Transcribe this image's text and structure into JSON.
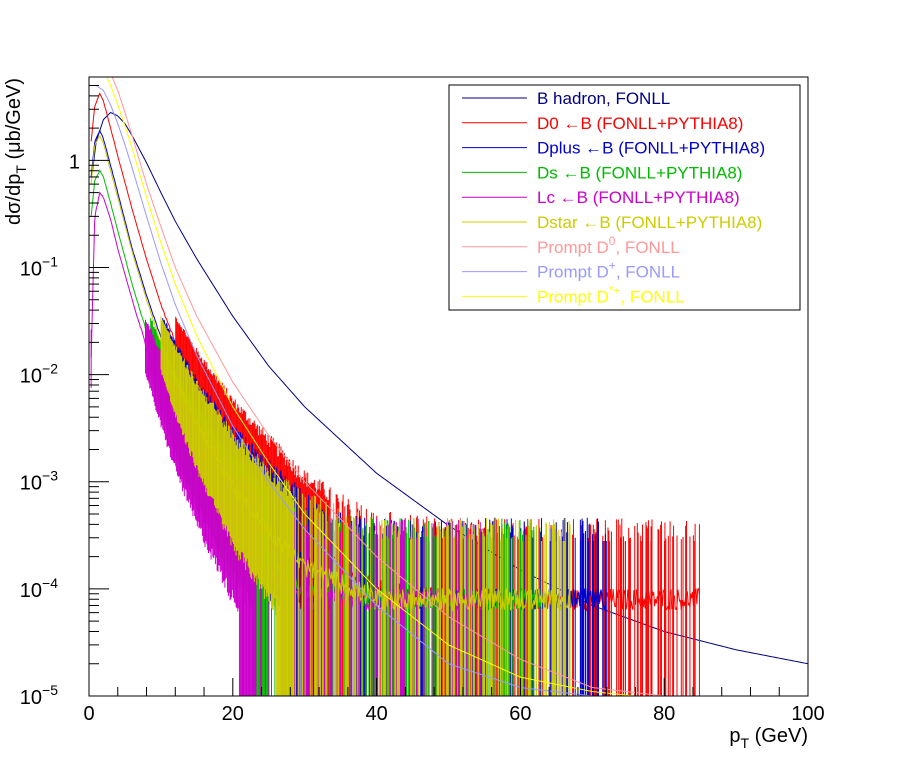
{
  "chart_data": {
    "type": "line",
    "title": "",
    "xlabel_main": "p",
    "xlabel_sub": "T",
    "xlabel_unit": " (GeV)",
    "ylabel_main": "dσ/dp",
    "ylabel_sub": "T",
    "ylabel_unit": " (μb/GeV)",
    "xlim": [
      0,
      100
    ],
    "ylim": [
      1e-05,
      6
    ],
    "yscale": "log",
    "grid": false,
    "legend_position": "top-right",
    "x_ticks": [
      "0",
      "20",
      "40",
      "60",
      "80",
      "100"
    ],
    "y_ticks": [
      {
        "value": 1e-05,
        "base": "10",
        "exp": "−5"
      },
      {
        "value": 0.0001,
        "base": "10",
        "exp": "−4"
      },
      {
        "value": 0.001,
        "base": "10",
        "exp": "−3"
      },
      {
        "value": 0.01,
        "base": "10",
        "exp": "−2"
      },
      {
        "value": 0.1,
        "base": "10",
        "exp": "−1"
      },
      {
        "value": 1,
        "base": "1",
        "exp": ""
      }
    ],
    "series": [
      {
        "name": "B hadron, FONLL",
        "legend_main": "B hadron, FONLL",
        "legend_sup": "",
        "legend_tail": "",
        "color": "#000080",
        "kind": "smooth",
        "x": [
          0.5,
          1,
          2,
          3,
          4,
          5,
          6,
          8,
          10,
          12,
          15,
          20,
          25,
          30,
          40,
          50,
          60,
          70,
          80,
          90,
          100
        ],
        "y": [
          0.8,
          1.5,
          2.4,
          2.8,
          2.6,
          2.2,
          1.7,
          0.95,
          0.5,
          0.27,
          0.12,
          0.035,
          0.012,
          0.005,
          0.0012,
          0.00039,
          0.00015,
          7e-05,
          4e-05,
          2.7e-05,
          2e-05
        ]
      },
      {
        "name": "D0 ←B (FONLL+PYTHIA8)",
        "legend_main": "D0 ←B (FONLL+PYTHIA8)",
        "legend_sup": "",
        "legend_tail": "",
        "color": "#ff0000",
        "kind": "noisy",
        "x": [
          0.3,
          0.8,
          1.5,
          2,
          3,
          4,
          6,
          8,
          10,
          12,
          15,
          20,
          25,
          30,
          35,
          40,
          50,
          60,
          70,
          85
        ],
        "y": [
          1.5,
          3.2,
          4.2,
          3.6,
          2.0,
          1.1,
          0.35,
          0.12,
          0.045,
          0.02,
          0.008,
          0.0022,
          0.0008,
          0.0003,
          0.00016,
          0.0001,
          8e-05,
          8e-05,
          8e-05,
          8e-05
        ]
      },
      {
        "name": "Dplus ←B (FONLL+PYTHIA8)",
        "legend_main": "Dplus ←B (FONLL+PYTHIA8)",
        "legend_sup": "",
        "legend_tail": "",
        "color": "#0000cc",
        "kind": "noisy",
        "x": [
          0.3,
          0.8,
          1.5,
          2,
          3,
          4,
          6,
          8,
          10,
          12,
          15,
          20,
          25,
          30,
          35,
          40,
          50,
          60,
          72
        ],
        "y": [
          0.7,
          1.5,
          1.9,
          1.6,
          0.9,
          0.5,
          0.15,
          0.055,
          0.022,
          0.01,
          0.0038,
          0.001,
          0.0004,
          0.00017,
          0.0001,
          8e-05,
          8e-05,
          8e-05,
          8e-05
        ]
      },
      {
        "name": "Ds ←B (FONLL+PYTHIA8)",
        "legend_main": "Ds ←B (FONLL+PYTHIA8)",
        "legend_sup": "",
        "legend_tail": "",
        "color": "#00bb00",
        "kind": "noisy",
        "x": [
          0.3,
          0.8,
          1.5,
          2,
          3,
          4,
          6,
          8,
          10,
          12,
          15,
          20,
          25,
          30,
          40,
          50,
          63
        ],
        "y": [
          0.3,
          0.65,
          0.8,
          0.7,
          0.4,
          0.22,
          0.07,
          0.025,
          0.01,
          0.0045,
          0.0018,
          0.0005,
          0.0002,
          0.0001,
          8e-05,
          8e-05,
          8e-05
        ]
      },
      {
        "name": "Lc ←B (FONLL+PYTHIA8)",
        "legend_main": "Lc ←B (FONLL+PYTHIA8)",
        "legend_sup": "",
        "legend_tail": "",
        "color": "#cc00cc",
        "kind": "noisy",
        "x": [
          0.3,
          0.8,
          1.5,
          2,
          3,
          4,
          6,
          8,
          10,
          12,
          15,
          20,
          25,
          30,
          40,
          55
        ],
        "y": [
          0.015,
          0.3,
          0.5,
          0.45,
          0.28,
          0.15,
          0.05,
          0.018,
          0.0075,
          0.0035,
          0.0013,
          0.00035,
          0.00015,
          8e-05,
          8e-05,
          8e-05
        ]
      },
      {
        "name": "Dstar ←B (FONLL+PYTHIA8)",
        "legend_main": "Dstar ←B (FONLL+PYTHIA8)",
        "legend_sup": "",
        "legend_tail": "",
        "color": "#cccc00",
        "kind": "noisy",
        "x": [
          0.3,
          0.8,
          1.5,
          2,
          3,
          4,
          6,
          8,
          10,
          12,
          15,
          20,
          25,
          30,
          40,
          50,
          60,
          67
        ],
        "y": [
          0.6,
          1.4,
          1.7,
          1.45,
          0.8,
          0.45,
          0.14,
          0.05,
          0.02,
          0.009,
          0.0035,
          0.0009,
          0.00035,
          0.00016,
          8e-05,
          8e-05,
          8e-05,
          8e-05
        ]
      },
      {
        "name": "Prompt D0, FONLL",
        "legend_main": "Prompt D",
        "legend_sup": "0",
        "legend_tail": ", FONLL",
        "color": "#ff9999",
        "kind": "smooth",
        "x": [
          0.1,
          1,
          2,
          3,
          4,
          5,
          6,
          8,
          10,
          12,
          15,
          20,
          25,
          30,
          40,
          50,
          60,
          70,
          80,
          84
        ],
        "y": [
          9,
          9,
          8,
          6.5,
          4.5,
          2.8,
          1.7,
          0.6,
          0.24,
          0.1,
          0.035,
          0.0085,
          0.0027,
          0.001,
          0.0002,
          5.5e-05,
          2.2e-05,
          1.2e-05,
          1e-05,
          1e-05
        ]
      },
      {
        "name": "Prompt D+, FONLL",
        "legend_main": "Prompt D",
        "legend_sup": "+",
        "legend_tail": ", FONLL",
        "color": "#9999ff",
        "kind": "smooth",
        "x": [
          0.1,
          1,
          2,
          3,
          4,
          5,
          6,
          8,
          10,
          12,
          15,
          20,
          25,
          30,
          40,
          50,
          60,
          70,
          74
        ],
        "y": [
          5,
          5,
          4.5,
          3.3,
          2.2,
          1.4,
          0.85,
          0.3,
          0.11,
          0.045,
          0.015,
          0.0033,
          0.001,
          0.00036,
          7e-05,
          2e-05,
          1.2e-05,
          1e-05,
          1e-05
        ]
      },
      {
        "name": "Prompt D*+, FONLL",
        "legend_main": "Prompt D",
        "legend_sup": "*+",
        "legend_tail": ", FONLL",
        "color": "#ffff00",
        "kind": "smooth",
        "x": [
          0.1,
          1,
          2,
          3,
          4,
          5,
          6,
          8,
          10,
          12,
          15,
          20,
          25,
          30,
          40,
          50,
          60,
          70,
          76
        ],
        "y": [
          8,
          8,
          7,
          5,
          3.3,
          2.1,
          1.3,
          0.45,
          0.17,
          0.07,
          0.023,
          0.005,
          0.0015,
          0.0005,
          0.0001,
          3e-05,
          1.5e-05,
          1.1e-05,
          1e-05
        ]
      }
    ]
  }
}
